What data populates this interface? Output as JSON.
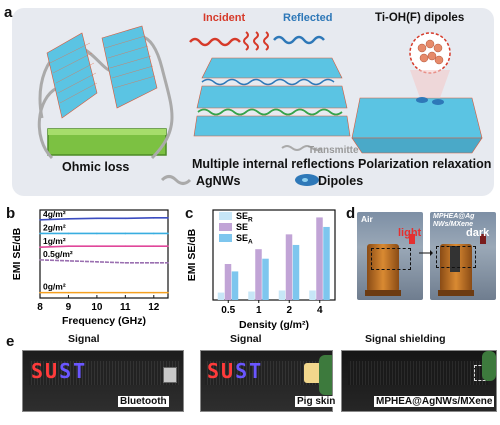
{
  "panels": {
    "a": "a",
    "b": "b",
    "c": "c",
    "d": "d",
    "e": "e"
  },
  "panel_a": {
    "incident": "Incident",
    "reflected": "Reflected",
    "transmitte": "Transmitte",
    "dipoles_title": "Ti-OH(F) dipoles",
    "ohmic": "Ohmic loss",
    "multiple": "Multiple internal reflections",
    "polarization": "Polarization relaxation",
    "agnws": "AgNWs",
    "dipoles": "Dipoles",
    "colors": {
      "red": "#d63a2a",
      "blue": "#2e78b8",
      "green_bar": "#7cc142",
      "bg": "#e7eaf0"
    }
  },
  "panel_b_labels": {
    "ylabel": "EMI SE/dB",
    "xlabel": "Frequency (GHz)"
  },
  "panel_c_labels": {
    "ylabel": "EMI SE/dB",
    "xlabel": "Density (g/m²)",
    "legend": [
      "SE",
      "SE",
      "SE"
    ],
    "legend_sub": [
      "R",
      "",
      "A"
    ]
  },
  "panel_d": {
    "air": "Air",
    "light": "light",
    "dark": "dark",
    "mpx_line1": "MPHEA@Ag",
    "mpx_line2": "NWs/MXene"
  },
  "panel_e": {
    "signal": "Signal",
    "signal_shielding": "Signal shielding",
    "bluetooth": "Bluetooth",
    "pig_skin": "Pig skin",
    "mphea": "MPHEA@AgNWs/MXene",
    "led_text_1": "SUST",
    "led_text_2": "SUST"
  },
  "chart_data": [
    {
      "type": "line",
      "x_ticks": [
        8,
        9,
        10,
        11,
        12
      ],
      "xlim": [
        8,
        12.5
      ],
      "ylim": [
        -5,
        85
      ],
      "xlabel": "Frequency (GHz)",
      "ylabel": "EMI SE/dB",
      "series": [
        {
          "name": "4g/m²",
          "color": "#3b4cc0",
          "values": [
            {
              "x": 8,
              "y": 75
            },
            {
              "x": 9,
              "y": 76
            },
            {
              "x": 10,
              "y": 76.5
            },
            {
              "x": 11,
              "y": 76.5
            },
            {
              "x": 12,
              "y": 77
            },
            {
              "x": 12.5,
              "y": 77
            }
          ]
        },
        {
          "name": "2g/m²",
          "color": "#38aee0",
          "values": [
            {
              "x": 8,
              "y": 61
            },
            {
              "x": 9,
              "y": 61
            },
            {
              "x": 10,
              "y": 61
            },
            {
              "x": 11,
              "y": 61
            },
            {
              "x": 12,
              "y": 61
            },
            {
              "x": 12.5,
              "y": 61
            }
          ]
        },
        {
          "name": "1g/m²",
          "color": "#e0479a",
          "values": [
            {
              "x": 8,
              "y": 47
            },
            {
              "x": 9,
              "y": 48
            },
            {
              "x": 10,
              "y": 48
            },
            {
              "x": 11,
              "y": 48
            },
            {
              "x": 12,
              "y": 48
            },
            {
              "x": 12.5,
              "y": 48
            }
          ]
        },
        {
          "name": "0.5g/m²",
          "color": "#9a6fb0",
          "values": [
            {
              "x": 8,
              "y": 34
            },
            {
              "x": 9,
              "y": 33
            },
            {
              "x": 10,
              "y": 32
            },
            {
              "x": 11,
              "y": 31
            },
            {
              "x": 12,
              "y": 31
            },
            {
              "x": 12.5,
              "y": 31
            }
          ]
        },
        {
          "name": "0g/m²",
          "color": "#f5a020",
          "values": [
            {
              "x": 8,
              "y": 0.5
            },
            {
              "x": 9,
              "y": 0.5
            },
            {
              "x": 10,
              "y": 0.5
            },
            {
              "x": 11,
              "y": 0.5
            },
            {
              "x": 12,
              "y": 0.5
            },
            {
              "x": 12.5,
              "y": 0.5
            }
          ]
        }
      ]
    },
    {
      "type": "bar",
      "categories": [
        "0.5",
        "1",
        "2",
        "4"
      ],
      "ylim": [
        0,
        85
      ],
      "xlabel": "Density (g/m²)",
      "ylabel": "EMI SE/dB",
      "legend_position": "top-left",
      "series": [
        {
          "name": "SER",
          "color": "#c7e6f7",
          "values": [
            7,
            8,
            9,
            9
          ]
        },
        {
          "name": "SE",
          "color": "#c1a4d6",
          "values": [
            34,
            48,
            62,
            78
          ]
        },
        {
          "name": "SEA",
          "color": "#7ec6ee",
          "values": [
            27,
            39,
            52,
            69
          ]
        }
      ]
    }
  ]
}
